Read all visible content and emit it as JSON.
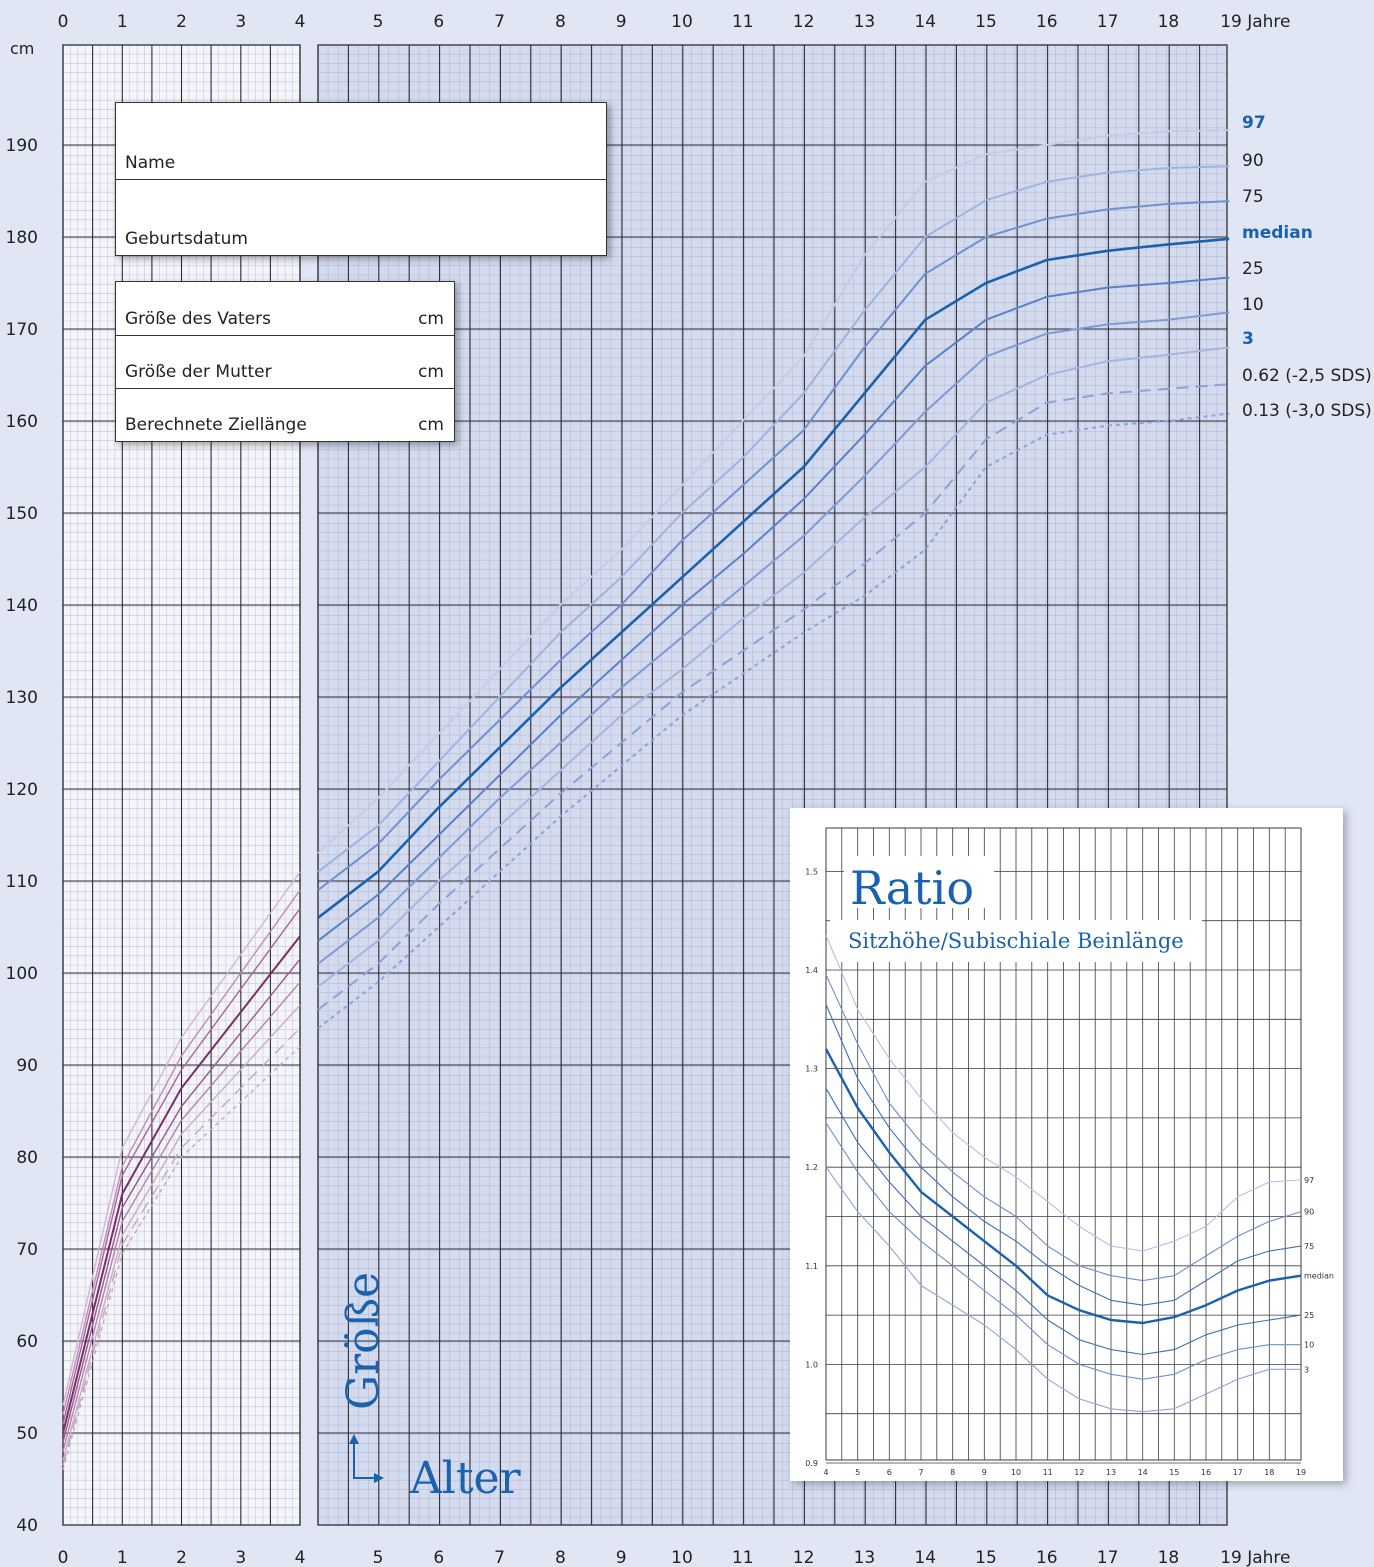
{
  "header": {
    "unit_label": "cm",
    "age_unit": "Jahre"
  },
  "form": {
    "name_label": "Name",
    "birthdate_label": "Geburtsdatum",
    "father_label": "Größe des Vaters",
    "mother_label": "Größe der Mutter",
    "target_label": "Berechnete Ziellänge",
    "unit": "cm"
  },
  "chart_labels": {
    "y_title": "Größe",
    "x_title": "Alter"
  },
  "colors": {
    "background": "#e0e6f4",
    "blue": "#1a62ad",
    "purple": "#7a2d6a"
  },
  "chart_data": [
    {
      "type": "line",
      "title": "",
      "xlabel": "Alter",
      "ylabel": "Größe",
      "x_unit": "Jahre",
      "y_unit": "cm",
      "xlim": [
        0,
        19
      ],
      "ylim": [
        40,
        195
      ],
      "x_ticks": [
        0,
        1,
        2,
        3,
        4,
        5,
        6,
        7,
        8,
        9,
        10,
        11,
        12,
        13,
        14,
        15,
        16,
        17,
        18,
        19
      ],
      "y_ticks": [
        40,
        50,
        60,
        70,
        80,
        90,
        100,
        110,
        120,
        130,
        140,
        150,
        160,
        170,
        180,
        190
      ],
      "grid": true,
      "age_points": [
        0,
        1,
        2,
        4,
        5,
        6,
        7,
        8,
        9,
        10,
        11,
        12,
        13,
        14,
        15,
        16,
        17,
        18,
        19
      ],
      "series": [
        {
          "name": "97",
          "label_bold": true,
          "style": "solid",
          "color": "#c4cde8",
          "values": [
            53,
            81,
            93,
            111,
            119,
            126,
            133,
            140,
            146,
            153,
            160,
            167,
            178,
            186,
            189,
            190,
            191,
            191.5,
            191.6
          ]
        },
        {
          "name": "90",
          "label_bold": false,
          "style": "solid",
          "color": "#9fb3df",
          "values": [
            52,
            79,
            91,
            109,
            116,
            123,
            130,
            137,
            143,
            150,
            156,
            163,
            172,
            180,
            184,
            186,
            187,
            187.5,
            187.7
          ]
        },
        {
          "name": "75",
          "label_bold": false,
          "style": "solid",
          "color": "#6f92cf",
          "values": [
            51,
            78,
            89.5,
            107,
            114,
            121,
            127.5,
            134,
            140,
            147,
            153,
            159,
            168,
            176,
            180,
            182,
            183,
            183.6,
            183.9
          ]
        },
        {
          "name": "median",
          "label_bold": true,
          "style": "solid",
          "color": "#1a62ad",
          "values": [
            50,
            76,
            87.5,
            104,
            111,
            118,
            124.5,
            131,
            137,
            143,
            149,
            155,
            163,
            171,
            175,
            177.5,
            178.5,
            179.2,
            179.8
          ]
        },
        {
          "name": "25",
          "label_bold": false,
          "style": "solid",
          "color": "#5b82c8",
          "values": [
            49,
            74.5,
            85.5,
            101.5,
            108.5,
            115,
            121.5,
            128,
            134,
            140,
            145.5,
            151.5,
            158.5,
            166,
            171,
            173.5,
            174.5,
            175,
            175.6
          ]
        },
        {
          "name": "10",
          "label_bold": false,
          "style": "solid",
          "color": "#7f9bd3",
          "values": [
            48,
            73,
            84,
            99,
            106,
            112.5,
            119,
            125,
            131,
            136.5,
            142,
            147.5,
            154,
            161,
            167,
            169.5,
            170.5,
            171,
            171.8
          ]
        },
        {
          "name": "3",
          "label_bold": true,
          "style": "solid",
          "color": "#a3b5e0",
          "values": [
            47,
            71.5,
            82.5,
            96.5,
            103.5,
            110,
            116,
            122,
            128,
            133,
            138.5,
            143.5,
            149.5,
            155,
            162,
            165,
            166.5,
            167.2,
            168
          ]
        },
        {
          "name": "0.62 (-2,5 SDS)",
          "label_bold": false,
          "style": "dashed",
          "color": "#8aa3d8",
          "values": [
            46.5,
            70.5,
            81,
            94,
            101,
            107.5,
            113.5,
            119.5,
            125,
            130.5,
            135,
            139.5,
            144.5,
            150,
            158,
            162,
            163,
            163.5,
            164
          ]
        },
        {
          "name": "0.13 (-3,0 SDS)",
          "label_bold": false,
          "style": "dotted",
          "color": "#8aa3d8",
          "values": [
            46,
            69.5,
            80,
            92,
            99,
            105,
            111,
            117,
            122.5,
            128,
            132.5,
            137,
            141,
            146,
            155,
            158.5,
            159.5,
            160,
            160.8
          ]
        }
      ]
    },
    {
      "type": "line",
      "title": "Ratio",
      "subtitle": "Sitzhöhe/Subischiale Beinlänge",
      "xlabel": "",
      "ylabel": "",
      "xlim": [
        4,
        19
      ],
      "ylim": [
        0.9,
        1.55
      ],
      "x_ticks": [
        4,
        5,
        6,
        7,
        8,
        9,
        10,
        11,
        12,
        13,
        14,
        15,
        16,
        17,
        18,
        19
      ],
      "y_ticks": [
        0.9,
        1.0,
        1.1,
        1.2,
        1.3,
        1.4,
        1.5
      ],
      "grid": true,
      "age_points": [
        4,
        5,
        6,
        7,
        8,
        9,
        10,
        11,
        12,
        13,
        14,
        15,
        16,
        17,
        18,
        19
      ],
      "series": [
        {
          "name": "97",
          "values": [
            1.435,
            1.36,
            1.31,
            1.27,
            1.235,
            1.21,
            1.19,
            1.165,
            1.14,
            1.12,
            1.115,
            1.125,
            1.14,
            1.17,
            1.185,
            1.187
          ]
        },
        {
          "name": "90",
          "values": [
            1.395,
            1.325,
            1.265,
            1.225,
            1.195,
            1.17,
            1.15,
            1.12,
            1.1,
            1.09,
            1.085,
            1.09,
            1.11,
            1.13,
            1.145,
            1.155
          ]
        },
        {
          "name": "75",
          "values": [
            1.365,
            1.29,
            1.24,
            1.2,
            1.17,
            1.145,
            1.125,
            1.1,
            1.08,
            1.065,
            1.06,
            1.065,
            1.085,
            1.105,
            1.115,
            1.12
          ]
        },
        {
          "name": "median",
          "values": [
            1.32,
            1.26,
            1.215,
            1.175,
            1.15,
            1.125,
            1.1,
            1.07,
            1.055,
            1.045,
            1.042,
            1.048,
            1.06,
            1.075,
            1.085,
            1.09
          ]
        },
        {
          "name": "25",
          "values": [
            1.28,
            1.225,
            1.185,
            1.15,
            1.125,
            1.1,
            1.075,
            1.045,
            1.025,
            1.015,
            1.01,
            1.015,
            1.03,
            1.04,
            1.045,
            1.05
          ]
        },
        {
          "name": "10",
          "values": [
            1.245,
            1.195,
            1.155,
            1.125,
            1.1,
            1.075,
            1.05,
            1.02,
            1.0,
            0.99,
            0.985,
            0.99,
            1.005,
            1.015,
            1.02,
            1.02
          ]
        },
        {
          "name": "3",
          "values": [
            1.2,
            1.155,
            1.12,
            1.08,
            1.06,
            1.04,
            1.015,
            0.985,
            0.965,
            0.955,
            0.952,
            0.955,
            0.97,
            0.985,
            0.995,
            0.995
          ]
        }
      ]
    }
  ]
}
